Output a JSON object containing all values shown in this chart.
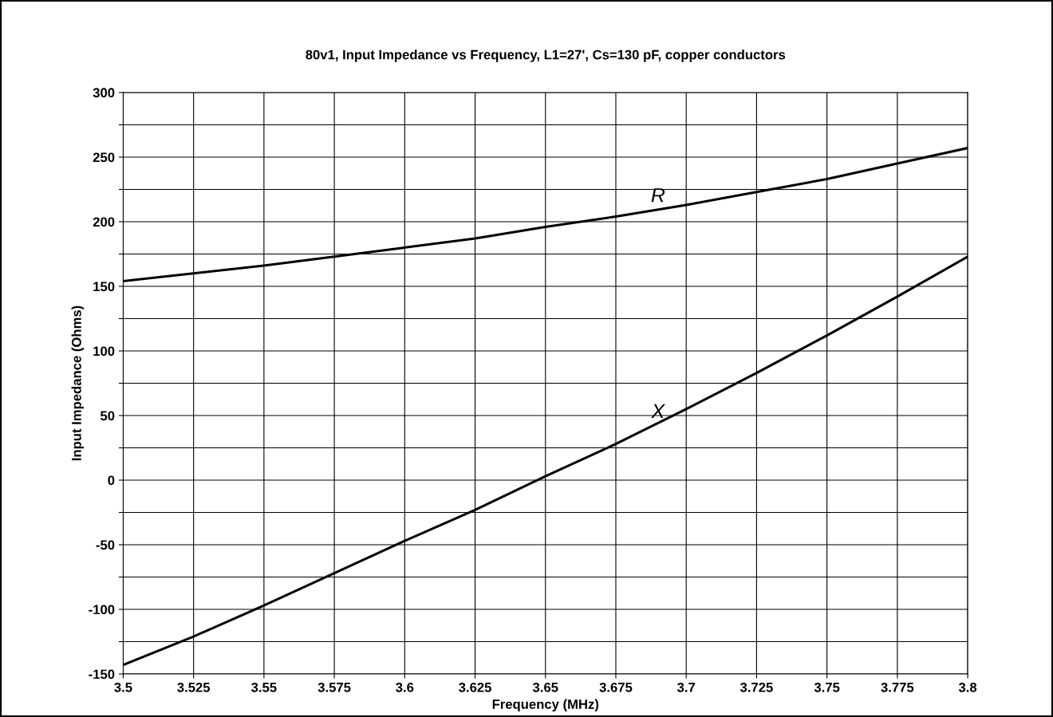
{
  "chart_data": {
    "type": "line",
    "title": "80v1, Input Impedance vs Frequency, L1=27', Cs=130 pF, copper conductors",
    "xlabel": "Frequency (MHz)",
    "ylabel": "Input Impedance (Ohms)",
    "x": [
      3.5,
      3.525,
      3.55,
      3.575,
      3.6,
      3.625,
      3.65,
      3.675,
      3.7,
      3.725,
      3.75,
      3.775,
      3.8
    ],
    "series": [
      {
        "color": "#000000",
        "values": [
          154,
          160,
          166,
          173,
          180,
          187,
          196,
          204,
          213,
          223,
          233,
          245,
          257
        ]
      },
      {
        "color": "#000000",
        "values": [
          -143,
          -121,
          -97,
          -72,
          -47,
          -23,
          3,
          28,
          55,
          83,
          112,
          142,
          173
        ]
      }
    ],
    "annotations": [
      {
        "text": "R",
        "x": 3.69,
        "y": 212
      },
      {
        "text": "X",
        "x": 3.69,
        "y": 45
      }
    ],
    "xlim": [
      3.5,
      3.8
    ],
    "xticks": [
      3.5,
      3.525,
      3.55,
      3.575,
      3.6,
      3.625,
      3.65,
      3.675,
      3.7,
      3.725,
      3.75,
      3.775,
      3.8
    ],
    "ylim": [
      -150,
      300
    ],
    "yticks": [
      -150,
      {
        "value": -125,
        "label": null
      },
      -100,
      {
        "value": -75,
        "label": null
      },
      -50,
      {
        "value": -25,
        "label": null
      },
      0,
      {
        "value": 25,
        "label": null
      },
      50,
      {
        "value": 75,
        "label": null
      },
      100,
      {
        "value": 125,
        "label": null
      },
      150,
      {
        "value": 175,
        "label": null
      },
      200,
      {
        "value": 225,
        "label": null
      },
      250,
      {
        "value": 275,
        "label": null
      },
      300
    ],
    "grid": true,
    "marker": "none",
    "line_style": "solid"
  }
}
